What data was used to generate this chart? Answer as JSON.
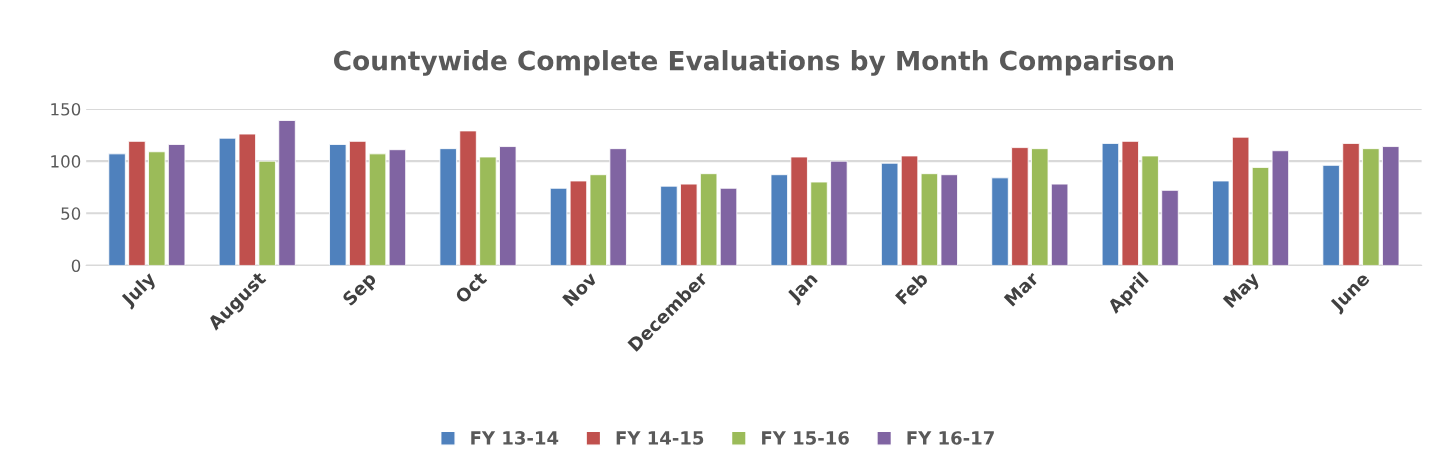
{
  "chart_data": {
    "type": "bar",
    "title": "Countywide Complete Evaluations by Month Comparison",
    "categories": [
      "July",
      "August",
      "Sep",
      "Oct",
      "Nov",
      "December",
      "Jan",
      "Feb",
      "Mar",
      "April",
      "May",
      "June"
    ],
    "series": [
      {
        "name": "FY 13-14",
        "color": "#4f81bd",
        "values": [
          107,
          122,
          116,
          112,
          74,
          76,
          87,
          98,
          84,
          117,
          81,
          96
        ]
      },
      {
        "name": "FY 14-15",
        "color": "#c0504d",
        "values": [
          119,
          126,
          119,
          129,
          81,
          78,
          104,
          105,
          113,
          119,
          123,
          117
        ]
      },
      {
        "name": "FY 15-16",
        "color": "#9bbb59",
        "values": [
          109,
          100,
          107,
          104,
          87,
          88,
          80,
          88,
          112,
          105,
          94,
          112
        ]
      },
      {
        "name": "FY 16-17",
        "color": "#8064a2",
        "values": [
          116,
          139,
          111,
          114,
          112,
          74,
          100,
          87,
          78,
          72,
          110,
          114
        ]
      }
    ],
    "ylim": [
      0,
      150
    ],
    "yticks": [
      0,
      50,
      100,
      150
    ],
    "grid": "y",
    "legend": "bottom"
  }
}
